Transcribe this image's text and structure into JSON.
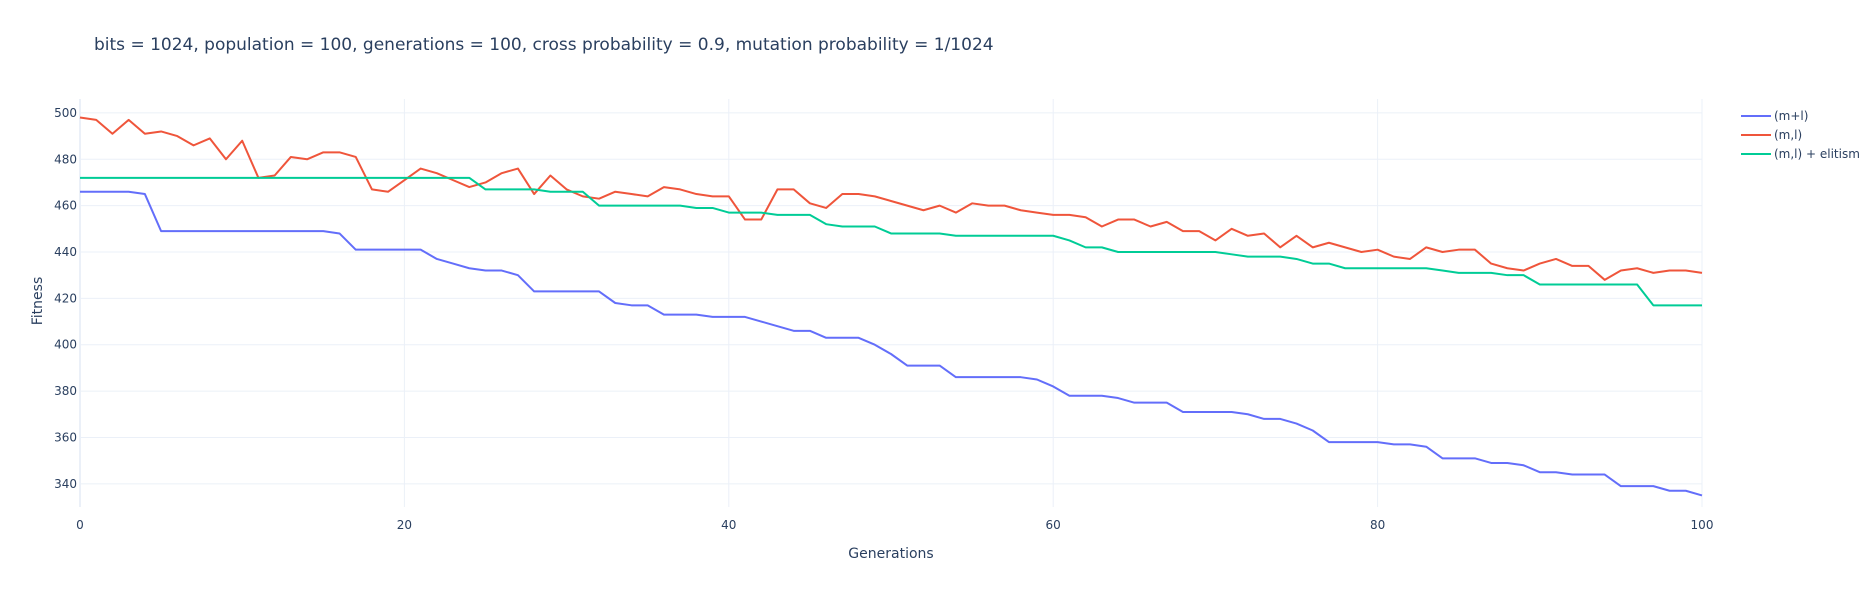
{
  "chart_data": {
    "type": "line",
    "title": "bits = 1024, population = 100, generations = 100, cross probability = 0.9, mutation probability = 1/1024",
    "xlabel": "Generations",
    "ylabel": "Fitness",
    "xlim": [
      0,
      100
    ],
    "ylim": [
      330,
      506
    ],
    "x_ticks": [
      0,
      20,
      40,
      60,
      80,
      100
    ],
    "y_ticks": [
      340,
      360,
      380,
      400,
      420,
      440,
      460,
      480,
      500
    ],
    "grid": true,
    "legend_position": "top-right",
    "x": [
      0,
      1,
      2,
      3,
      4,
      5,
      6,
      7,
      8,
      9,
      10,
      11,
      12,
      13,
      14,
      15,
      16,
      17,
      18,
      19,
      20,
      21,
      22,
      23,
      24,
      25,
      26,
      27,
      28,
      29,
      30,
      31,
      32,
      33,
      34,
      35,
      36,
      37,
      38,
      39,
      40,
      41,
      42,
      43,
      44,
      45,
      46,
      47,
      48,
      49,
      50,
      51,
      52,
      53,
      54,
      55,
      56,
      57,
      58,
      59,
      60,
      61,
      62,
      63,
      64,
      65,
      66,
      67,
      68,
      69,
      70,
      71,
      72,
      73,
      74,
      75,
      76,
      77,
      78,
      79,
      80,
      81,
      82,
      83,
      84,
      85,
      86,
      87,
      88,
      89,
      90,
      91,
      92,
      93,
      94,
      95,
      96,
      97,
      98,
      99,
      100
    ],
    "series": [
      {
        "name": "(m+l)",
        "color": "#636efa",
        "values": [
          466,
          466,
          466,
          466,
          465,
          449,
          449,
          449,
          449,
          449,
          449,
          449,
          449,
          449,
          449,
          449,
          448,
          441,
          441,
          441,
          441,
          441,
          437,
          435,
          433,
          432,
          432,
          430,
          423,
          423,
          423,
          423,
          423,
          418,
          417,
          417,
          413,
          413,
          413,
          412,
          412,
          412,
          410,
          408,
          406,
          406,
          403,
          403,
          403,
          400,
          396,
          391,
          391,
          391,
          386,
          386,
          386,
          386,
          386,
          385,
          382,
          378,
          378,
          378,
          377,
          375,
          375,
          375,
          371,
          371,
          371,
          371,
          370,
          368,
          368,
          366,
          363,
          358,
          358,
          358,
          358,
          357,
          357,
          356,
          351,
          351,
          351,
          349,
          349,
          348,
          345,
          345,
          344,
          344,
          344,
          339,
          339,
          339,
          337,
          337,
          335
        ]
      },
      {
        "name": "(m,l)",
        "color": "#ef553b",
        "values": [
          498,
          497,
          491,
          497,
          491,
          492,
          490,
          486,
          489,
          480,
          488,
          472,
          473,
          481,
          480,
          483,
          483,
          481,
          467,
          466,
          471,
          476,
          474,
          471,
          468,
          470,
          474,
          476,
          465,
          473,
          467,
          464,
          463,
          466,
          465,
          464,
          468,
          467,
          465,
          464,
          464,
          454,
          454,
          467,
          467,
          461,
          459,
          465,
          465,
          464,
          462,
          460,
          458,
          460,
          457,
          461,
          460,
          460,
          458,
          457,
          456,
          456,
          455,
          451,
          454,
          454,
          451,
          453,
          449,
          449,
          445,
          450,
          447,
          448,
          442,
          447,
          442,
          444,
          442,
          440,
          441,
          438,
          437,
          442,
          440,
          441,
          441,
          435,
          433,
          432,
          435,
          437,
          434,
          434,
          428,
          432,
          433,
          431,
          432,
          432,
          431
        ]
      },
      {
        "name": "(m,l) + elitism",
        "color": "#00cc96",
        "values": [
          472,
          472,
          472,
          472,
          472,
          472,
          472,
          472,
          472,
          472,
          472,
          472,
          472,
          472,
          472,
          472,
          472,
          472,
          472,
          472,
          472,
          472,
          472,
          472,
          472,
          467,
          467,
          467,
          467,
          466,
          466,
          466,
          460,
          460,
          460,
          460,
          460,
          460,
          459,
          459,
          457,
          457,
          457,
          456,
          456,
          456,
          452,
          451,
          451,
          451,
          448,
          448,
          448,
          448,
          447,
          447,
          447,
          447,
          447,
          447,
          447,
          445,
          442,
          442,
          440,
          440,
          440,
          440,
          440,
          440,
          440,
          439,
          438,
          438,
          438,
          437,
          435,
          435,
          433,
          433,
          433,
          433,
          433,
          433,
          432,
          431,
          431,
          431,
          430,
          430,
          426,
          426,
          426,
          426,
          426,
          426,
          426,
          417,
          417,
          417,
          417
        ]
      }
    ]
  }
}
